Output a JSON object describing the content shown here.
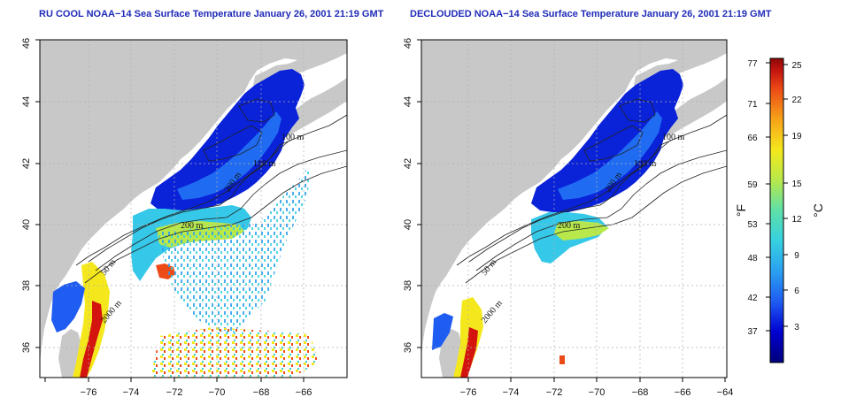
{
  "panels": [
    {
      "id": "rucool",
      "title": "RU COOL NOAA−14 Sea Surface Temperature January 26, 2001 21:19 GMT",
      "contour_labels": [
        "100 m",
        "100 m",
        "200 m",
        "200 m",
        "50 m",
        "2000 m"
      ]
    },
    {
      "id": "declouded",
      "title": "DECLOUDED NOAA−14 Sea Surface Temperature January 26, 2001 21:19 GMT",
      "contour_labels": [
        "100 m",
        "100 m",
        "200 m",
        "200 m",
        "50 m",
        "2000 m"
      ]
    }
  ],
  "axes": {
    "x_ticks": [
      "−76",
      "−74",
      "−72",
      "−70",
      "−68",
      "−66",
      "−64"
    ],
    "y_ticks": [
      "36",
      "38",
      "40",
      "42",
      "44",
      "46"
    ]
  },
  "colorbar": {
    "fahrenheit_labels": [
      "77",
      "71",
      "66",
      "59",
      "53",
      "48",
      "42",
      "37"
    ],
    "celsius_labels": [
      "25",
      "22",
      "19",
      "15",
      "12",
      "9",
      "6",
      "3"
    ],
    "unit_f": "°F",
    "unit_c": "°C",
    "colors": [
      "#00007a",
      "#0000d0",
      "#1f5cf2",
      "#2aa0f0",
      "#36d0e0",
      "#5ee0a8",
      "#b8e84a",
      "#f4e81c",
      "#f7a21a",
      "#ec4a16",
      "#c4140e",
      "#8a0806"
    ]
  },
  "colors": {
    "title": "#1f2bb8",
    "land": "#c8c8c8",
    "ocean_no_data": "#ffffff",
    "grid": "#b0b0b0"
  }
}
